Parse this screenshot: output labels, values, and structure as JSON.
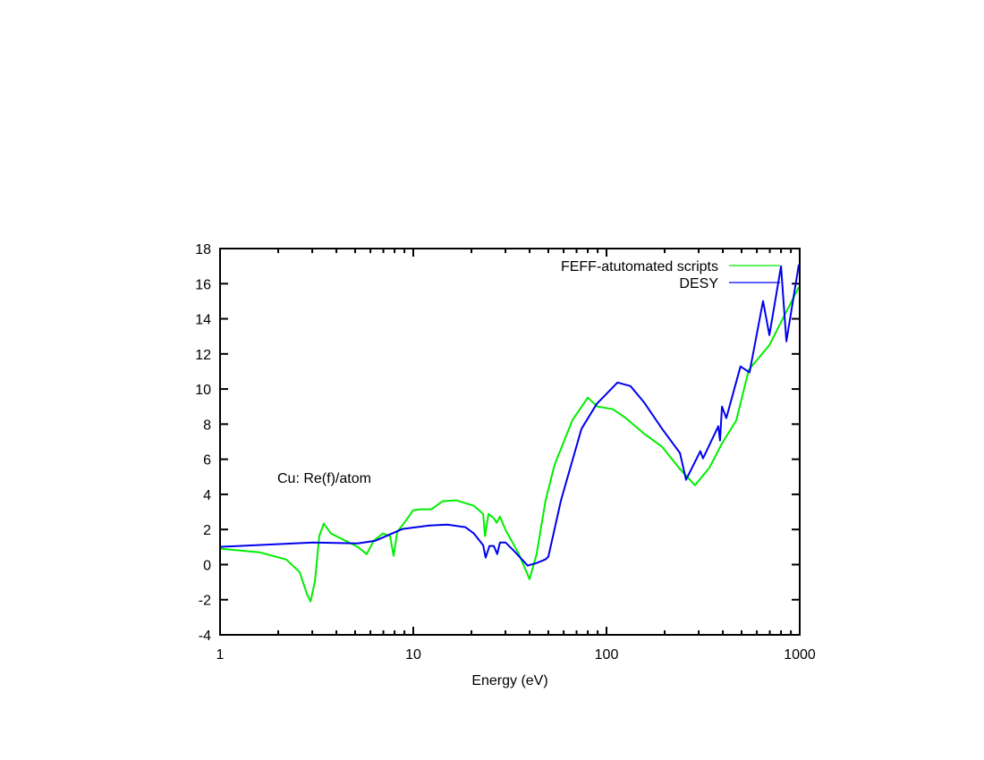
{
  "chart_data": {
    "type": "line",
    "title": "",
    "annotation": "Cu: Re(f)/atom",
    "xlabel": "Energy (eV)",
    "ylabel": "",
    "xscale": "log",
    "xlim": [
      1,
      1000
    ],
    "ylim": [
      -4,
      18
    ],
    "xticks": [
      1,
      10,
      100,
      1000
    ],
    "xtick_labels": [
      "1",
      "10",
      "100",
      "1000"
    ],
    "yticks": [
      -4,
      -2,
      0,
      2,
      4,
      6,
      8,
      10,
      12,
      14,
      16,
      18
    ],
    "ytick_labels": [
      "-4",
      "-2",
      "0",
      "2",
      "4",
      "6",
      "8",
      "10",
      "12",
      "14",
      "16",
      "18"
    ],
    "grid": false,
    "legend_position": "top-right",
    "series": [
      {
        "name": "FEFF-atutomated scripts",
        "color": "#00ee00",
        "x": [
          1,
          1.6,
          2.2,
          2.58,
          2.81,
          2.94,
          3.1,
          3.26,
          3.44,
          3.75,
          4.17,
          5.16,
          5.74,
          6.25,
          6.96,
          7.58,
          7.91,
          8.26,
          8.99,
          10.0,
          10.9,
          12.4,
          14.2,
          16.7,
          20.6,
          23.0,
          23.5,
          24.5,
          26.1,
          27.0,
          28.1,
          30.0,
          35.2,
          40.0,
          43.5,
          48.4,
          53.9,
          66.7,
          80.0,
          89.9,
          108,
          126,
          156,
          194,
          240,
          287,
          340,
          396,
          469,
          545,
          697,
          861,
          989
        ],
        "y": [
          0.91,
          0.7,
          0.29,
          -0.42,
          -1.64,
          -2.1,
          -0.93,
          1.62,
          2.33,
          1.77,
          1.52,
          1.01,
          0.6,
          1.36,
          1.77,
          1.62,
          0.5,
          1.87,
          2.38,
          3.1,
          3.15,
          3.15,
          3.61,
          3.66,
          3.35,
          2.89,
          1.62,
          2.89,
          2.64,
          2.38,
          2.74,
          1.98,
          0.6,
          -0.83,
          0.6,
          3.66,
          5.69,
          8.24,
          9.51,
          9.0,
          8.85,
          8.34,
          7.47,
          6.71,
          5.44,
          4.52,
          5.5,
          6.9,
          8.2,
          11.1,
          12.5,
          14.5,
          15.8
        ]
      },
      {
        "name": "DESY",
        "color": "#0000ee",
        "x": [
          1,
          3.03,
          5.16,
          6.38,
          8.8,
          12.1,
          15.0,
          18.6,
          20.6,
          23.0,
          23.7,
          24.8,
          26.1,
          27.2,
          28.1,
          30.0,
          33.4,
          39.1,
          43.5,
          48.4,
          50.0,
          58.1,
          74.2,
          88.9,
          114,
          133,
          156,
          194,
          240,
          258,
          306,
          316,
          379,
          387,
          396,
          417,
          494,
          550,
          646,
          697,
          800,
          853,
          989
        ],
        "y": [
          1.01,
          1.26,
          1.21,
          1.36,
          2.03,
          2.23,
          2.28,
          2.13,
          1.77,
          1.11,
          0.4,
          1.06,
          1.06,
          0.6,
          1.26,
          1.26,
          0.75,
          -0.06,
          0.09,
          0.3,
          0.45,
          3.66,
          7.73,
          9.15,
          10.37,
          10.17,
          9.26,
          7.73,
          6.36,
          4.83,
          6.46,
          6.05,
          7.88,
          7.07,
          9.0,
          8.34,
          11.29,
          10.94,
          15.01,
          13.07,
          16.99,
          12.72,
          17.09
        ]
      }
    ]
  }
}
